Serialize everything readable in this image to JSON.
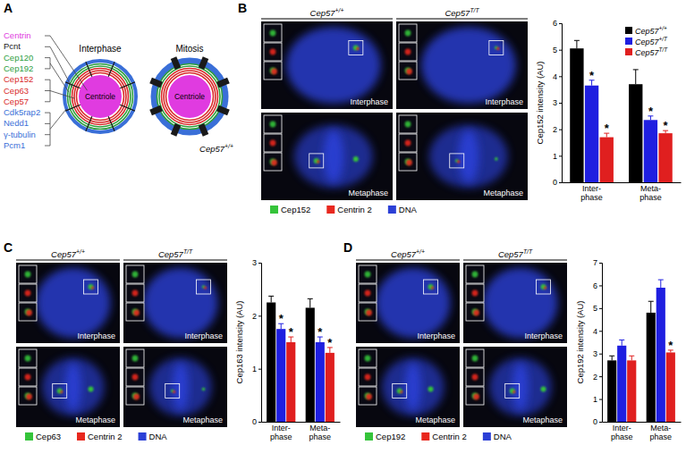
{
  "figure": {
    "panel_letters": [
      "A",
      "B",
      "C",
      "D"
    ],
    "diagram": {
      "states": [
        "Interphase",
        "Mitosis"
      ],
      "center_label": "Centriole",
      "genotype": "Cep57+/+",
      "groups": [
        {
          "color": "#e03be0",
          "labels": [
            "Centrin"
          ]
        },
        {
          "color": "#1a1a1a",
          "labels": [
            "Pcnt"
          ]
        },
        {
          "color": "#2e9e3e",
          "labels": [
            "Cep120",
            "Cep192"
          ]
        },
        {
          "color": "#d92a2a",
          "labels": [
            "Cep152",
            "Cep63",
            "Cep57"
          ]
        },
        {
          "color": "#3a6fd8",
          "labels": [
            "Cdk5rap2",
            "Nedd1",
            "γ-tubulin",
            "Pcm1"
          ]
        }
      ]
    },
    "micrographs": [
      {
        "genotypes": [
          "Cep57+/+",
          "Cep57T/T"
        ],
        "phases": [
          "Interphase",
          "Metaphase"
        ],
        "channels": [
          {
            "name": "Cep152",
            "color": "#35c43a"
          },
          {
            "name": "Centrin 2",
            "color": "#e8281e"
          },
          {
            "name": "DNA",
            "color": "#2b3fd6"
          }
        ]
      },
      {
        "genotypes": [
          "Cep57+/+",
          "Cep57T/T"
        ],
        "phases": [
          "Interphase",
          "Metaphase"
        ],
        "channels": [
          {
            "name": "Cep63",
            "color": "#35c43a"
          },
          {
            "name": "Centrin 2",
            "color": "#e8281e"
          },
          {
            "name": "DNA",
            "color": "#2b3fd6"
          }
        ]
      },
      {
        "genotypes": [
          "Cep57+/+",
          "Cep57T/T"
        ],
        "phases": [
          "Interphase",
          "Metaphase"
        ],
        "channels": [
          {
            "name": "Cep192",
            "color": "#35c43a"
          },
          {
            "name": "Centrin 2",
            "color": "#e8281e"
          },
          {
            "name": "DNA",
            "color": "#2b3fd6"
          }
        ]
      }
    ]
  },
  "chart_data": [
    {
      "type": "bar",
      "ylabel": "Cep152 intensity (AU)",
      "categories": [
        "Inter-\nphase",
        "Meta-\nphase"
      ],
      "series": [
        {
          "name": "Cep57+/+",
          "color": "#000000",
          "values": [
            5.05,
            3.7
          ],
          "errors": [
            0.3,
            0.55
          ]
        },
        {
          "name": "Cep57+/T",
          "color": "#1f1fe0",
          "values": [
            3.65,
            2.35
          ],
          "errors": [
            0.2,
            0.15
          ]
        },
        {
          "name": "Cep57T/T",
          "color": "#e01f1f",
          "values": [
            1.7,
            1.85
          ],
          "errors": [
            0.15,
            0.1
          ]
        }
      ],
      "ylim": [
        0,
        6
      ],
      "yticks": [
        0,
        1,
        2,
        3,
        4,
        5,
        6
      ],
      "grid": false,
      "legend": "top-right",
      "annotations": [
        {
          "text": "*",
          "series": 1,
          "category": 0
        },
        {
          "text": "*",
          "series": 2,
          "category": 0
        },
        {
          "text": "*",
          "series": 1,
          "category": 1
        },
        {
          "text": "*",
          "series": 2,
          "category": 1
        }
      ]
    },
    {
      "type": "bar",
      "ylabel": "Cep163 intensity (AU)",
      "categories": [
        "Inter-\nphase",
        "Meta-\nphase"
      ],
      "series": [
        {
          "name": "Cep57+/+",
          "color": "#000000",
          "values": [
            2.25,
            2.15
          ],
          "errors": [
            0.12,
            0.17
          ]
        },
        {
          "name": "Cep57+/T",
          "color": "#1f1fe0",
          "values": [
            1.75,
            1.5
          ],
          "errors": [
            0.1,
            0.1
          ]
        },
        {
          "name": "Cep57T/T",
          "color": "#e01f1f",
          "values": [
            1.5,
            1.3
          ],
          "errors": [
            0.1,
            0.1
          ]
        }
      ],
      "ylim": [
        0,
        3
      ],
      "yticks": [
        0,
        1,
        2,
        3
      ],
      "grid": false,
      "annotations": [
        {
          "text": "*",
          "series": 1,
          "category": 0
        },
        {
          "text": "*",
          "series": 2,
          "category": 0
        },
        {
          "text": "*",
          "series": 1,
          "category": 1
        },
        {
          "text": "*",
          "series": 2,
          "category": 1
        }
      ]
    },
    {
      "type": "bar",
      "ylabel": "Cep192 intensity (AU)",
      "categories": [
        "Inter-\nphase",
        "Meta-\nphase"
      ],
      "series": [
        {
          "name": "Cep57+/+",
          "color": "#000000",
          "values": [
            2.7,
            4.8
          ],
          "errors": [
            0.2,
            0.5
          ]
        },
        {
          "name": "Cep57+/T",
          "color": "#1f1fe0",
          "values": [
            3.35,
            5.9
          ],
          "errors": [
            0.25,
            0.35
          ]
        },
        {
          "name": "Cep57T/T",
          "color": "#e01f1f",
          "values": [
            2.7,
            3.05
          ],
          "errors": [
            0.2,
            0.1
          ]
        }
      ],
      "ylim": [
        0,
        7
      ],
      "yticks": [
        0,
        1,
        2,
        3,
        4,
        5,
        6,
        7
      ],
      "grid": false,
      "annotations": [
        {
          "text": "*",
          "series": 2,
          "category": 1
        }
      ]
    }
  ]
}
